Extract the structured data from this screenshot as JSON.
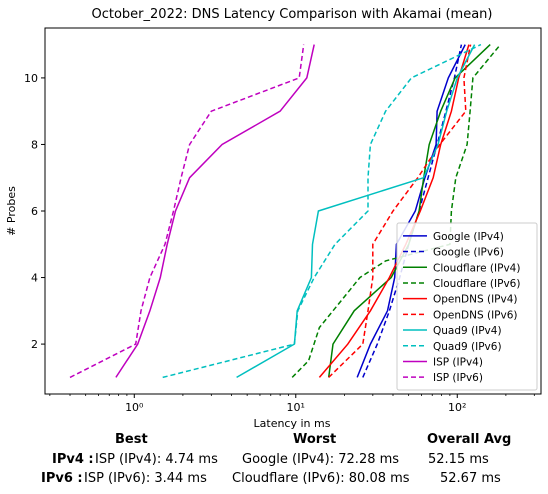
{
  "chart_data": {
    "type": "line",
    "title": "October_2022: DNS Latency Comparison with Akamai (mean)",
    "xlabel": "Latency in ms",
    "ylabel": "# Probes",
    "xscale": "log",
    "xlim": [
      0.28,
      330
    ],
    "ylim": [
      0.5,
      11.5
    ],
    "x_ticks": [
      {
        "value": 1,
        "label": "10⁰"
      },
      {
        "value": 10,
        "label": "10¹"
      },
      {
        "value": 100,
        "label": "10²"
      }
    ],
    "y_ticks": [
      2,
      4,
      6,
      8,
      10
    ],
    "grid": false,
    "legend": "lower-right",
    "series": [
      {
        "name": "Google (IPv4)",
        "color": "#0000cc",
        "dash": "solid",
        "points": [
          [
            24,
            1
          ],
          [
            29,
            2
          ],
          [
            37,
            3
          ],
          [
            41,
            4
          ],
          [
            42,
            5
          ],
          [
            55,
            6
          ],
          [
            63,
            7
          ],
          [
            74,
            8
          ],
          [
            75,
            9
          ],
          [
            88,
            10
          ],
          [
            112,
            11
          ]
        ]
      },
      {
        "name": "Google (IPv6)",
        "color": "#0000cc",
        "dash": "dashed",
        "points": [
          [
            26,
            1
          ],
          [
            32,
            2
          ],
          [
            38,
            3
          ],
          [
            44,
            4
          ],
          [
            50,
            5
          ],
          [
            58,
            6
          ],
          [
            66,
            7
          ],
          [
            75,
            8
          ],
          [
            85,
            9
          ],
          [
            96,
            10
          ],
          [
            106,
            11
          ]
        ]
      },
      {
        "name": "Cloudflare (IPv4)",
        "color": "#008000",
        "dash": "solid",
        "points": [
          [
            16,
            1
          ],
          [
            17,
            2
          ],
          [
            23,
            3
          ],
          [
            39,
            4
          ],
          [
            50,
            5
          ],
          [
            58,
            6
          ],
          [
            62,
            7
          ],
          [
            67,
            8
          ],
          [
            79,
            9
          ],
          [
            97,
            10
          ],
          [
            160,
            11
          ]
        ]
      },
      {
        "name": "Cloudflare (IPv6)",
        "color": "#008000",
        "dash": "dashed",
        "points": [
          [
            9.5,
            1
          ],
          [
            12,
            1.5
          ],
          [
            14,
            2.5
          ],
          [
            17,
            3
          ],
          [
            25,
            4
          ],
          [
            36,
            4.5
          ],
          [
            90,
            5
          ],
          [
            92,
            6
          ],
          [
            98,
            7
          ],
          [
            115,
            8
          ],
          [
            120,
            9
          ],
          [
            125,
            10
          ],
          [
            185,
            11
          ]
        ]
      },
      {
        "name": "OpenDNS (IPv4)",
        "color": "#ff0000",
        "dash": "solid",
        "points": [
          [
            14,
            1
          ],
          [
            21,
            2
          ],
          [
            29,
            3
          ],
          [
            38,
            4
          ],
          [
            48,
            5
          ],
          [
            59,
            6
          ],
          [
            71,
            7
          ],
          [
            79,
            8
          ],
          [
            92,
            9
          ],
          [
            102,
            10
          ],
          [
            118,
            11
          ]
        ]
      },
      {
        "name": "OpenDNS (IPv6)",
        "color": "#ff0000",
        "dash": "dashed",
        "points": [
          [
            16,
            1
          ],
          [
            26,
            2
          ],
          [
            28,
            3
          ],
          [
            30,
            4
          ],
          [
            30,
            5
          ],
          [
            40,
            6
          ],
          [
            57,
            7
          ],
          [
            78,
            8
          ],
          [
            113,
            9
          ],
          [
            110,
            10
          ],
          [
            121,
            11
          ]
        ]
      },
      {
        "name": "Quad9 (IPv4)",
        "color": "#00bfbf",
        "dash": "solid",
        "points": [
          [
            4.3,
            1
          ],
          [
            9.8,
            2
          ],
          [
            10.2,
            3
          ],
          [
            12.5,
            4
          ],
          [
            12.7,
            5
          ],
          [
            13.8,
            6
          ],
          [
            62,
            7
          ],
          [
            76,
            8
          ],
          [
            86,
            9
          ],
          [
            100,
            10
          ],
          [
            128,
            11
          ]
        ]
      },
      {
        "name": "Quad9 (IPv6)",
        "color": "#00bfbf",
        "dash": "dashed",
        "points": [
          [
            1.5,
            1
          ],
          [
            9.8,
            2
          ],
          [
            10.3,
            3
          ],
          [
            13,
            4
          ],
          [
            17.5,
            5
          ],
          [
            28,
            6
          ],
          [
            28,
            7
          ],
          [
            29,
            8
          ],
          [
            36,
            9
          ],
          [
            52,
            10
          ],
          [
            140,
            11
          ]
        ]
      },
      {
        "name": "ISP (IPv4)",
        "color": "#bf00bf",
        "dash": "solid",
        "points": [
          [
            0.77,
            1
          ],
          [
            1.05,
            2
          ],
          [
            1.25,
            3
          ],
          [
            1.45,
            4
          ],
          [
            1.6,
            5
          ],
          [
            1.8,
            6
          ],
          [
            2.2,
            7
          ],
          [
            3.5,
            8
          ],
          [
            8,
            9
          ],
          [
            11.7,
            10
          ],
          [
            13,
            11
          ]
        ]
      },
      {
        "name": "ISP (IPv6)",
        "color": "#bf00bf",
        "dash": "dashed",
        "points": [
          [
            0.4,
            1
          ],
          [
            0.93,
            1.9
          ],
          [
            1.02,
            2
          ],
          [
            1.1,
            3
          ],
          [
            1.25,
            4
          ],
          [
            1.55,
            5
          ],
          [
            1.75,
            6
          ],
          [
            1.95,
            7
          ],
          [
            2.2,
            8
          ],
          [
            3,
            9
          ],
          [
            10.5,
            10
          ],
          [
            11.2,
            11
          ]
        ]
      }
    ]
  },
  "stats": {
    "best_header": "Best",
    "worst_header": "Worst",
    "avg_header": "Overall Avg",
    "ipv4_label": "IPv4 :",
    "ipv6_label": "IPv6 :",
    "ipv4_best": "ISP (IPv4): 4.74 ms",
    "ipv4_worst": "Google (IPv4): 72.28 ms",
    "ipv4_avg": "52.15 ms",
    "ipv6_best": "ISP (IPv6): 3.44 ms",
    "ipv6_worst": "Cloudflare (IPv6): 80.08 ms",
    "ipv6_avg": "52.67 ms"
  }
}
